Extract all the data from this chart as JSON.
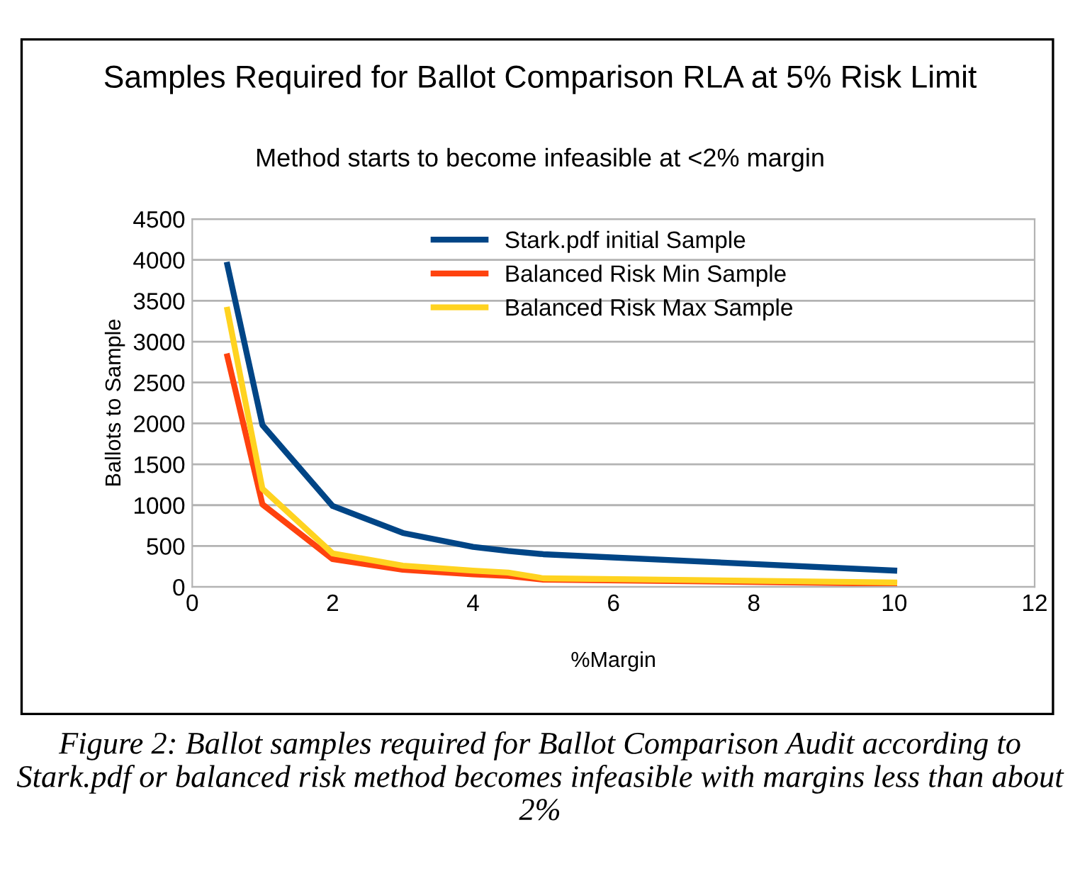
{
  "chart_data": {
    "type": "line",
    "title": "Samples Required for Ballot Comparison RLA at 5% Risk Limit",
    "subtitle": "Method starts to become infeasible at <2% margin",
    "xlabel": "%Margin",
    "ylabel": "Ballots to Sample",
    "x": [
      0.5,
      1,
      2,
      3,
      4,
      4.5,
      5,
      10
    ],
    "series": [
      {
        "name": "Stark.pdf initial Sample",
        "color": "#004586",
        "values": [
          3940,
          1980,
          990,
          660,
          490,
          440,
          400,
          200
        ]
      },
      {
        "name": "Balanced Risk Min Sample",
        "color": "#ff420e",
        "values": [
          2820,
          1010,
          340,
          210,
          155,
          135,
          90,
          40
        ]
      },
      {
        "name": "Balanced Risk Max Sample",
        "color": "#ffd320",
        "values": [
          3390,
          1200,
          410,
          260,
          200,
          175,
          105,
          55
        ]
      }
    ],
    "xlim": [
      0,
      12
    ],
    "xticks": [
      0,
      2,
      4,
      6,
      8,
      10,
      12
    ],
    "ylim": [
      0,
      4500
    ],
    "yticks": [
      0,
      500,
      1000,
      1500,
      2000,
      2500,
      3000,
      3500,
      4000,
      4500
    ],
    "grid": "y",
    "legend": "top",
    "marker": "none",
    "line_style": "solid",
    "annotations": [
      "Figure 2: Ballot samples required for Ballot Comparison Audit according to Stark.pdf or balanced risk method becomes infeasible with margins less than about 2%"
    ]
  }
}
